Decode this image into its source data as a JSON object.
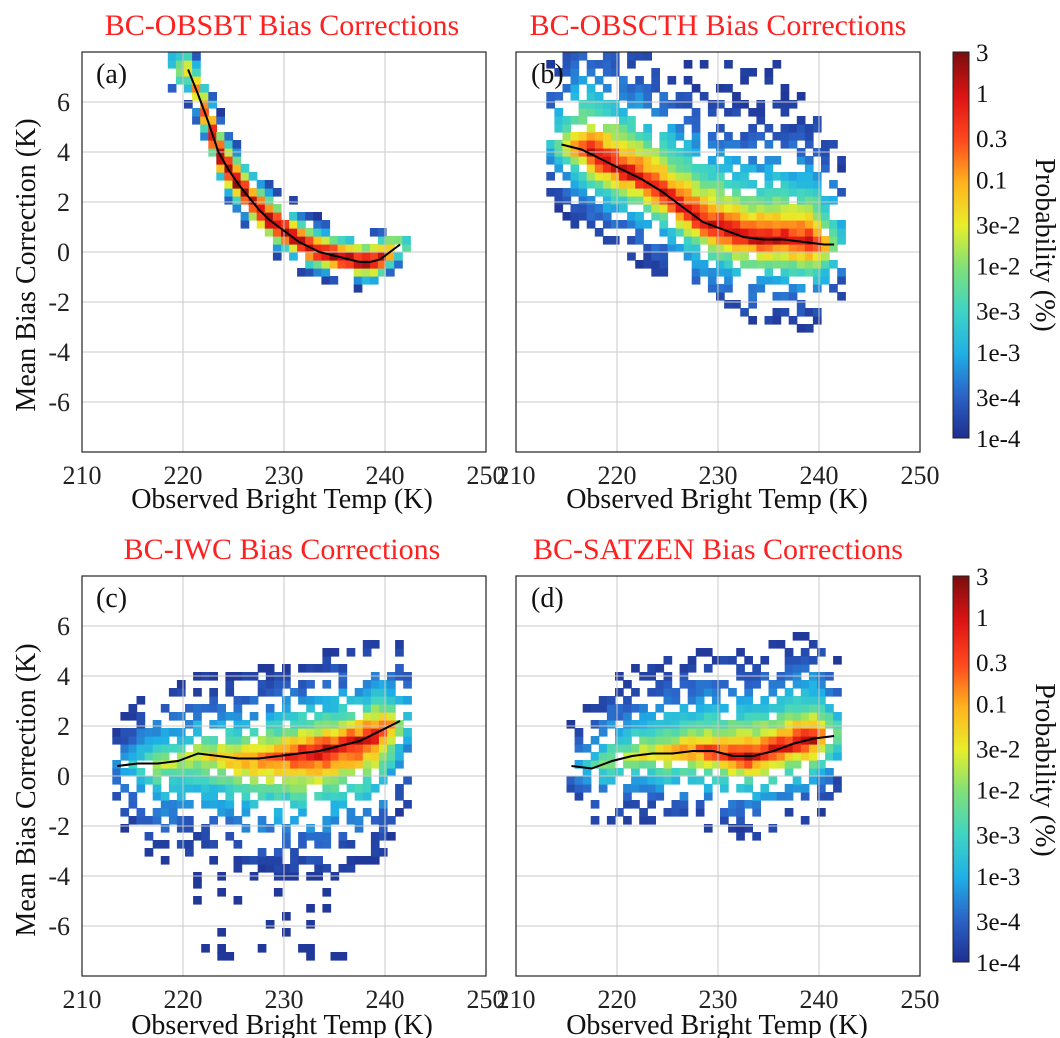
{
  "chart_data": [
    {
      "type": "heatmap",
      "title": "BC-OBSBT Bias Corrections",
      "panel_label": "(a)",
      "xlabel": "Observed Bright Temp (K)",
      "ylabel": "Mean Bias Correction (K)",
      "xlim": [
        210,
        250
      ],
      "ylim": [
        -8,
        8
      ],
      "xticks": [
        210,
        220,
        230,
        240,
        250
      ],
      "yticks": [
        -6,
        -4,
        -2,
        0,
        2,
        4,
        6
      ],
      "grid": true,
      "mean_line": [
        {
          "x": 220.5,
          "y": 7.3
        },
        {
          "x": 221.5,
          "y": 6.3
        },
        {
          "x": 222.5,
          "y": 5.2
        },
        {
          "x": 223.5,
          "y": 4.0
        },
        {
          "x": 224.5,
          "y": 3.3
        },
        {
          "x": 225.5,
          "y": 2.7
        },
        {
          "x": 226.5,
          "y": 2.2
        },
        {
          "x": 227.5,
          "y": 1.7
        },
        {
          "x": 228.5,
          "y": 1.3
        },
        {
          "x": 229.5,
          "y": 1.0
        },
        {
          "x": 230.5,
          "y": 0.7
        },
        {
          "x": 231.5,
          "y": 0.4
        },
        {
          "x": 232.5,
          "y": 0.2
        },
        {
          "x": 233.5,
          "y": 0.0
        },
        {
          "x": 234.5,
          "y": -0.1
        },
        {
          "x": 235.5,
          "y": -0.2
        },
        {
          "x": 236.5,
          "y": -0.3
        },
        {
          "x": 237.5,
          "y": -0.4
        },
        {
          "x": 238.5,
          "y": -0.4
        },
        {
          "x": 239.5,
          "y": -0.3
        },
        {
          "x": 240.5,
          "y": 0.0
        },
        {
          "x": 241.5,
          "y": 0.3
        }
      ]
    },
    {
      "type": "heatmap",
      "title": "BC-OBSCTH Bias Corrections",
      "panel_label": "(b)",
      "xlabel": "Observed Bright Temp (K)",
      "ylabel": "",
      "xlim": [
        210,
        250
      ],
      "ylim": [
        -8,
        8
      ],
      "xticks": [
        210,
        220,
        230,
        240,
        250
      ],
      "yticks": [
        -6,
        -4,
        -2,
        0,
        2,
        4,
        6
      ],
      "grid": true,
      "mean_line": [
        {
          "x": 214.5,
          "y": 4.3
        },
        {
          "x": 216.5,
          "y": 4.1
        },
        {
          "x": 218.5,
          "y": 3.7
        },
        {
          "x": 220.5,
          "y": 3.3
        },
        {
          "x": 222.5,
          "y": 2.9
        },
        {
          "x": 224.5,
          "y": 2.4
        },
        {
          "x": 226.5,
          "y": 1.8
        },
        {
          "x": 228.5,
          "y": 1.2
        },
        {
          "x": 230.5,
          "y": 0.9
        },
        {
          "x": 232.5,
          "y": 0.6
        },
        {
          "x": 234.5,
          "y": 0.5
        },
        {
          "x": 236.5,
          "y": 0.5
        },
        {
          "x": 238.5,
          "y": 0.4
        },
        {
          "x": 240.5,
          "y": 0.3
        },
        {
          "x": 241.5,
          "y": 0.3
        }
      ]
    },
    {
      "type": "heatmap",
      "title": "BC-IWC Bias Corrections",
      "panel_label": "(c)",
      "xlabel": "Observed Bright Temp (K)",
      "ylabel": "Mean Bias Correction (K)",
      "xlim": [
        210,
        250
      ],
      "ylim": [
        -8,
        8
      ],
      "xticks": [
        210,
        220,
        230,
        240,
        250
      ],
      "yticks": [
        -6,
        -4,
        -2,
        0,
        2,
        4,
        6
      ],
      "grid": true,
      "mean_line": [
        {
          "x": 213.5,
          "y": 0.4
        },
        {
          "x": 215.5,
          "y": 0.5
        },
        {
          "x": 217.5,
          "y": 0.5
        },
        {
          "x": 219.5,
          "y": 0.6
        },
        {
          "x": 221.5,
          "y": 0.9
        },
        {
          "x": 223.5,
          "y": 0.8
        },
        {
          "x": 225.5,
          "y": 0.7
        },
        {
          "x": 227.5,
          "y": 0.7
        },
        {
          "x": 229.5,
          "y": 0.8
        },
        {
          "x": 231.5,
          "y": 0.9
        },
        {
          "x": 233.5,
          "y": 1.0
        },
        {
          "x": 235.5,
          "y": 1.2
        },
        {
          "x": 237.5,
          "y": 1.4
        },
        {
          "x": 239.5,
          "y": 1.8
        },
        {
          "x": 241.5,
          "y": 2.2
        }
      ]
    },
    {
      "type": "heatmap",
      "title": "BC-SATZEN Bias Corrections",
      "panel_label": "(d)",
      "xlabel": "Observed Bright Temp (K)",
      "ylabel": "",
      "xlim": [
        210,
        250
      ],
      "ylim": [
        -8,
        8
      ],
      "xticks": [
        210,
        220,
        230,
        240,
        250
      ],
      "yticks": [
        -6,
        -4,
        -2,
        0,
        2,
        4,
        6
      ],
      "grid": true,
      "mean_line": [
        {
          "x": 215.5,
          "y": 0.4
        },
        {
          "x": 217.5,
          "y": 0.3
        },
        {
          "x": 219.5,
          "y": 0.6
        },
        {
          "x": 221.5,
          "y": 0.8
        },
        {
          "x": 223.5,
          "y": 0.9
        },
        {
          "x": 225.5,
          "y": 0.9
        },
        {
          "x": 227.5,
          "y": 1.0
        },
        {
          "x": 229.5,
          "y": 1.0
        },
        {
          "x": 231.5,
          "y": 0.8
        },
        {
          "x": 233.5,
          "y": 0.8
        },
        {
          "x": 235.5,
          "y": 1.0
        },
        {
          "x": 237.5,
          "y": 1.3
        },
        {
          "x": 239.5,
          "y": 1.5
        },
        {
          "x": 241.5,
          "y": 1.6
        }
      ]
    }
  ],
  "colorbar": {
    "label": "Probability (%)",
    "scale": "log",
    "range": [
      0.0001,
      3
    ],
    "ticks": [
      {
        "value": 3,
        "label": "3"
      },
      {
        "value": 1,
        "label": "1"
      },
      {
        "value": 0.3,
        "label": "0.3"
      },
      {
        "value": 0.1,
        "label": "0.1"
      },
      {
        "value": 0.03,
        "label": "3e-2"
      },
      {
        "value": 0.01,
        "label": "1e-2"
      },
      {
        "value": 0.003,
        "label": "3e-3"
      },
      {
        "value": 0.001,
        "label": "1e-3"
      },
      {
        "value": 0.0003,
        "label": "3e-4"
      },
      {
        "value": 0.0001,
        "label": "1e-4"
      }
    ],
    "colormap": [
      "#1e2f8f",
      "#2b63c8",
      "#1fb0e6",
      "#3fd4c4",
      "#7ee07a",
      "#e8ee2a",
      "#ffb41e",
      "#ff4a1e",
      "#e01414",
      "#7a0e0e"
    ]
  }
}
